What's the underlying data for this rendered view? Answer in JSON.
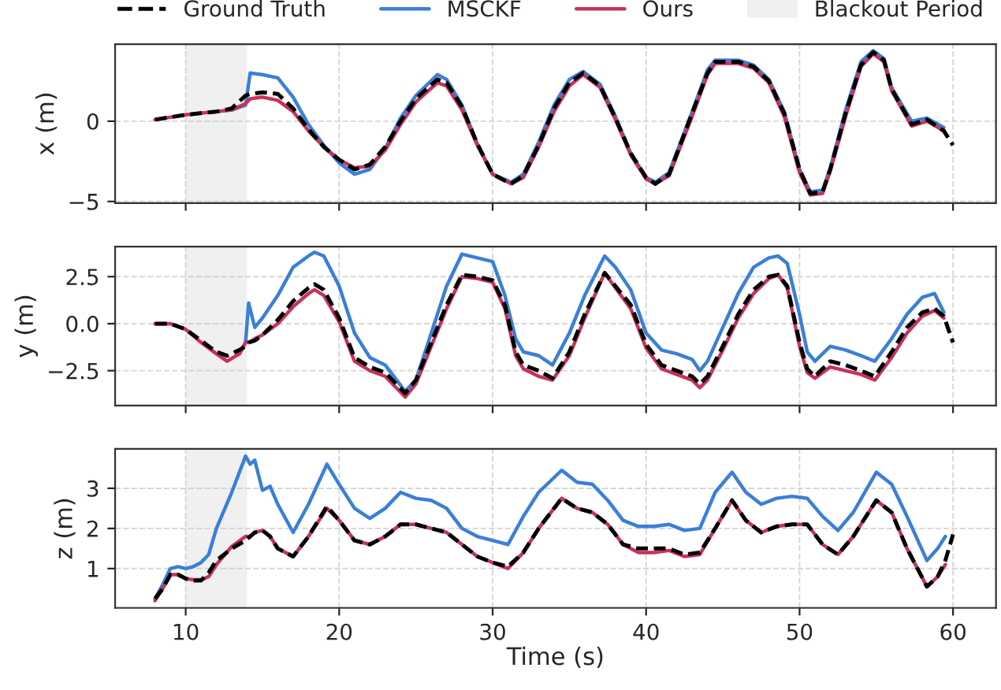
{
  "chart_data": [
    {
      "type": "line",
      "ylabel": "x (m)",
      "xlim": [
        5.4,
        62.8
      ],
      "xticks": [
        10,
        20,
        30,
        40,
        50,
        60
      ],
      "ylim": [
        -5.1,
        4.8
      ],
      "yticks": [
        {
          "value": -5,
          "label": "−5"
        },
        0
      ],
      "grid": true,
      "tick_labels": "y",
      "legend": "top",
      "bands": [
        {
          "axis": "x",
          "from": 10,
          "to": 14,
          "label": "Blackout Period",
          "color": "#f0f0f0"
        }
      ],
      "x": [
        8,
        10,
        12,
        13,
        13.9,
        14.2,
        15,
        16,
        17,
        18,
        19,
        20,
        21,
        22,
        23,
        24,
        25,
        26.4,
        27,
        28,
        29,
        30,
        31.2,
        32,
        33,
        34,
        35,
        35.9,
        37,
        38,
        39,
        40,
        40.6,
        41.5,
        43,
        44,
        44.5,
        46,
        47,
        48,
        49,
        50,
        50.7,
        51.5,
        52,
        53,
        54,
        54.8,
        55.5,
        56,
        57.3,
        58.3,
        59.4,
        60
      ],
      "series": [
        {
          "name": "Ground Truth",
          "color": "#000000",
          "line_style": "dashed",
          "values": [
            0.1,
            0.4,
            0.6,
            0.8,
            1.6,
            1.7,
            1.8,
            1.7,
            0.8,
            -0.5,
            -1.6,
            -2.4,
            -3.0,
            -2.7,
            -1.6,
            0.0,
            1.4,
            2.6,
            2.4,
            0.9,
            -1.4,
            -3.3,
            -3.9,
            -3.4,
            -1.5,
            0.8,
            2.4,
            3.0,
            2.2,
            0.2,
            -2.0,
            -3.5,
            -3.9,
            -3.3,
            0.5,
            3.0,
            3.7,
            3.7,
            3.4,
            2.5,
            0.5,
            -3.0,
            -4.5,
            -4.4,
            -3.0,
            0.5,
            3.5,
            4.3,
            3.8,
            2.0,
            -0.2,
            0.1,
            -0.6,
            -1.5
          ]
        },
        {
          "name": "MSCKF",
          "color": "#3a7fd9",
          "line_style": "solid",
          "values": [
            null,
            null,
            0.6,
            0.7,
            1.0,
            3.0,
            2.9,
            2.7,
            1.5,
            -0.2,
            -1.5,
            -2.6,
            -3.3,
            -3.0,
            -1.7,
            0.2,
            1.6,
            2.9,
            2.6,
            1.0,
            -1.4,
            -3.3,
            -3.8,
            -3.3,
            -1.3,
            1.0,
            2.6,
            3.1,
            2.3,
            0.3,
            -2.0,
            -3.5,
            -3.8,
            -3.2,
            0.6,
            3.2,
            3.8,
            3.8,
            3.5,
            2.6,
            0.6,
            -3.0,
            -4.4,
            -4.3,
            -2.9,
            0.7,
            3.7,
            4.4,
            3.9,
            2.1,
            0.0,
            0.2,
            -0.4,
            null
          ]
        },
        {
          "name": "Ours",
          "color": "#c8325a",
          "line_style": "solid",
          "values": [
            0.1,
            0.4,
            0.6,
            0.7,
            1.1,
            1.4,
            1.5,
            1.3,
            0.6,
            -0.6,
            -1.6,
            -2.4,
            -2.9,
            -2.8,
            -1.8,
            -0.2,
            1.2,
            2.4,
            2.2,
            0.7,
            -1.5,
            -3.3,
            -3.9,
            -3.5,
            -1.6,
            0.6,
            2.2,
            2.9,
            2.1,
            0.1,
            -2.1,
            -3.6,
            -3.9,
            -3.4,
            0.3,
            2.9,
            3.6,
            3.6,
            3.3,
            2.4,
            0.3,
            -3.2,
            -4.6,
            -4.5,
            -3.1,
            0.3,
            3.4,
            4.2,
            3.7,
            1.9,
            -0.3,
            0.0,
            -0.6,
            null
          ]
        }
      ]
    },
    {
      "type": "line",
      "ylabel": "y (m)",
      "xlim": [
        5.4,
        62.8
      ],
      "xticks": [
        10,
        20,
        30,
        40,
        50,
        60
      ],
      "ylim": [
        -4.35,
        4.1
      ],
      "yticks": [
        {
          "value": -2.5,
          "label": "−2.5"
        },
        {
          "value": 0,
          "label": "0.0"
        },
        {
          "value": 2.5,
          "label": "2.5"
        }
      ],
      "grid": true,
      "tick_labels": "y",
      "bands": [
        {
          "axis": "x",
          "from": 10,
          "to": 14,
          "color": "#f0f0f0"
        }
      ],
      "x": [
        8,
        9,
        10,
        11,
        12,
        12.7,
        13.5,
        13.9,
        14.1,
        14.5,
        15,
        16,
        17,
        18,
        18.4,
        19,
        20,
        21,
        22,
        23,
        24.3,
        25,
        26,
        27,
        28,
        29,
        30,
        30.8,
        31.5,
        32,
        33,
        33.9,
        35,
        36,
        37.3,
        38,
        39,
        40,
        41,
        42,
        43,
        43.5,
        44,
        45,
        46,
        47,
        48,
        48.6,
        49.2,
        50,
        50.5,
        51,
        52,
        53,
        54,
        54.9,
        56,
        57,
        58,
        58.8,
        59.4,
        60
      ],
      "series": [
        {
          "color": "#000000",
          "line_style": "dashed",
          "values": [
            0,
            0,
            -0.3,
            -0.9,
            -1.5,
            -1.7,
            -1.4,
            -1.2,
            -1.0,
            -0.9,
            -0.6,
            0.2,
            1.2,
            1.9,
            2.1,
            1.8,
            0.3,
            -1.8,
            -2.3,
            -2.6,
            -3.7,
            -3.0,
            -1.0,
            1.0,
            2.6,
            2.5,
            2.3,
            1.0,
            -1.5,
            -2.2,
            -2.5,
            -2.9,
            -1.5,
            0.5,
            2.7,
            2.0,
            1.0,
            -1.1,
            -2.2,
            -2.5,
            -2.8,
            -3.2,
            -2.8,
            -1.2,
            0.5,
            1.8,
            2.5,
            2.6,
            2.0,
            -1.0,
            -2.4,
            -2.8,
            -2.0,
            -2.2,
            -2.5,
            -2.8,
            -1.5,
            -0.2,
            0.6,
            0.8,
            0.4,
            -1.0
          ]
        },
        {
          "color": "#3a7fd9",
          "line_style": "solid",
          "values": [
            null,
            null,
            null,
            null,
            null,
            null,
            -1.6,
            -1.0,
            1.1,
            -0.2,
            0.3,
            1.5,
            3.0,
            3.6,
            3.8,
            3.6,
            2.0,
            -0.5,
            -1.8,
            -2.2,
            -3.6,
            -3.0,
            -0.5,
            2.0,
            3.7,
            3.5,
            3.3,
            1.5,
            -0.8,
            -1.5,
            -1.7,
            -2.2,
            -0.5,
            1.5,
            3.6,
            3.0,
            1.8,
            -0.5,
            -1.4,
            -1.6,
            -1.9,
            -2.5,
            -2.0,
            -0.2,
            1.6,
            3.0,
            3.5,
            3.6,
            3.2,
            0.5,
            -1.5,
            -2.0,
            -1.2,
            -1.4,
            -1.7,
            -2.0,
            -0.8,
            0.5,
            1.4,
            1.6,
            0.6,
            null
          ]
        },
        {
          "color": "#c8325a",
          "line_style": "solid",
          "values": [
            0,
            0,
            -0.3,
            -1.0,
            -1.6,
            -2.0,
            -1.6,
            -1.0,
            -1.0,
            -0.8,
            -0.6,
            0,
            0.9,
            1.6,
            1.8,
            1.5,
            0.1,
            -2.0,
            -2.5,
            -2.8,
            -3.9,
            -3.2,
            -1.2,
            0.8,
            2.5,
            2.4,
            2.2,
            0.8,
            -1.7,
            -2.4,
            -2.8,
            -3.0,
            -1.7,
            0.3,
            2.7,
            1.9,
            0.8,
            -1.3,
            -2.4,
            -2.7,
            -3.0,
            -3.4,
            -3.0,
            -1.4,
            0.3,
            1.6,
            2.4,
            2.6,
            1.9,
            -1.2,
            -2.6,
            -2.9,
            -2.3,
            -2.5,
            -2.7,
            -3.0,
            -1.8,
            -0.5,
            0.4,
            0.7,
            0.3,
            null
          ]
        }
      ]
    },
    {
      "type": "line",
      "ylabel": "z (m)",
      "xlabel": "Time (s)",
      "xlim": [
        5.4,
        62.8
      ],
      "xticks": [
        10,
        20,
        30,
        40,
        50,
        60
      ],
      "ylim": [
        0.02,
        3.98
      ],
      "yticks": [
        1,
        2,
        3
      ],
      "grid": true,
      "bands": [
        {
          "axis": "x",
          "from": 10,
          "to": 14,
          "color": "#f0f0f0"
        }
      ],
      "x": [
        8,
        8.5,
        9,
        9.5,
        10,
        10.5,
        11,
        11.5,
        12,
        13,
        13.9,
        14.2,
        14.5,
        15,
        15.5,
        16,
        17,
        18,
        19.2,
        20,
        21,
        22,
        23,
        24,
        25,
        26,
        27,
        28,
        29,
        30,
        31,
        32,
        33,
        34.5,
        35.5,
        36.5,
        37.5,
        38.5,
        39.5,
        40.5,
        41.5,
        42.5,
        43.5,
        44.5,
        45.6,
        46.5,
        47.5,
        48.5,
        49.5,
        50.5,
        51.5,
        52.5,
        53.5,
        55,
        56,
        57,
        58.3,
        59,
        59.5,
        60
      ],
      "series": [
        {
          "color": "#000000",
          "line_style": "dashed",
          "values": [
            0.25,
            0.5,
            0.85,
            0.85,
            0.75,
            0.7,
            0.7,
            0.9,
            1.2,
            1.5,
            1.7,
            1.8,
            1.9,
            1.95,
            1.8,
            1.5,
            1.3,
            1.8,
            2.55,
            2.2,
            1.7,
            1.6,
            1.8,
            2.1,
            2.1,
            2.0,
            1.9,
            1.6,
            1.3,
            1.15,
            1.05,
            1.4,
            2.0,
            2.75,
            2.5,
            2.4,
            2.1,
            1.6,
            1.5,
            1.5,
            1.5,
            1.35,
            1.4,
            2.0,
            2.7,
            2.2,
            1.9,
            2.05,
            2.1,
            2.1,
            1.6,
            1.35,
            1.8,
            2.7,
            2.4,
            1.5,
            0.55,
            0.8,
            1.2,
            1.85
          ]
        },
        {
          "color": "#3a7fd9",
          "line_style": "solid",
          "values": [
            0.25,
            0.6,
            1.0,
            1.05,
            1.0,
            1.05,
            1.15,
            1.35,
            2.0,
            2.9,
            3.8,
            3.6,
            3.7,
            2.95,
            3.05,
            2.6,
            1.9,
            2.6,
            3.6,
            3.1,
            2.5,
            2.25,
            2.5,
            2.9,
            2.75,
            2.7,
            2.5,
            2.0,
            1.8,
            1.7,
            1.6,
            2.3,
            2.9,
            3.45,
            3.15,
            3.1,
            2.7,
            2.2,
            2.05,
            2.05,
            2.1,
            1.95,
            2.0,
            2.9,
            3.4,
            2.9,
            2.6,
            2.75,
            2.8,
            2.75,
            2.3,
            1.95,
            2.4,
            3.4,
            3.1,
            2.3,
            1.2,
            1.5,
            1.8,
            null
          ]
        },
        {
          "color": "#c8325a",
          "line_style": "solid",
          "values": [
            0.2,
            0.5,
            0.85,
            0.85,
            0.75,
            0.72,
            0.72,
            0.8,
            1.1,
            1.55,
            1.8,
            1.8,
            1.9,
            1.95,
            1.8,
            1.5,
            1.3,
            1.8,
            2.5,
            2.2,
            1.7,
            1.6,
            1.8,
            2.1,
            2.1,
            2.0,
            1.9,
            1.6,
            1.3,
            1.15,
            1.0,
            1.4,
            2.0,
            2.75,
            2.5,
            2.4,
            2.1,
            1.6,
            1.4,
            1.4,
            1.45,
            1.3,
            1.35,
            2.0,
            2.7,
            2.2,
            1.9,
            2.05,
            2.1,
            2.1,
            1.6,
            1.35,
            1.8,
            2.7,
            2.4,
            1.5,
            0.55,
            0.8,
            1.1,
            null
          ]
        }
      ]
    }
  ]
}
